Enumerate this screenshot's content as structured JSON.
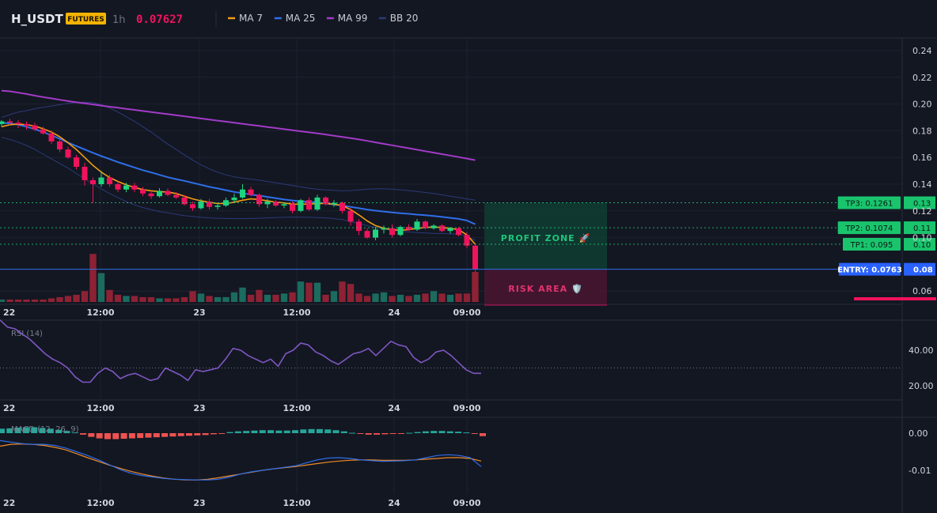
{
  "header": {
    "symbol": "H_USDT",
    "badge": "FUTURES",
    "timeframe": "1h",
    "price": "0.07627",
    "legend": [
      {
        "label": "MA 7",
        "color": "#f39c12"
      },
      {
        "label": "MA 25",
        "color": "#2f6fe8"
      },
      {
        "label": "MA 99",
        "color": "#a23bc7"
      },
      {
        "label": "BB 20",
        "color": "#2b3a78"
      }
    ]
  },
  "colors": {
    "background": "#131722",
    "up": "#1fd47f",
    "down": "#f0135c",
    "vol_up": "#1b6b5f",
    "vol_down": "#8d2234",
    "grid": "#1e2230",
    "profit_zone": "#0f3d32",
    "risk_zone": "#4a1530"
  },
  "price_axis": {
    "ticks": [
      "0.24",
      "0.22",
      "0.20",
      "0.18",
      "0.16",
      "0.14",
      "0.12",
      "0.10",
      "0.06"
    ],
    "range": [
      0.05,
      0.25
    ]
  },
  "time_axis": {
    "labels": [
      "22",
      "12:00",
      "23",
      "12:00",
      "24",
      "09:00"
    ]
  },
  "levels": {
    "tp3": {
      "tag": "TP3: 0.1261",
      "axis": "0.13",
      "value": 0.1261
    },
    "tp2": {
      "tag": "TP2: 0.1074",
      "axis": "0.11",
      "value": 0.1074
    },
    "tp1": {
      "tag": "TP1: 0.095",
      "axis": "0.10",
      "value": 0.095
    },
    "entry": {
      "tag": "ENTRY: 0.0763",
      "axis": "0.08",
      "value": 0.0763
    }
  },
  "zones": {
    "profit": "PROFIT ZONE 🚀",
    "risk": "RISK AREA 🛡️"
  },
  "chart_data": [
    {
      "type": "candlestick",
      "title": "H_USDT 1h",
      "series_names": [
        "MA 7",
        "MA 25",
        "MA 99",
        "BB 20"
      ],
      "ylim": [
        0.05,
        0.25
      ],
      "x_start": 0,
      "candles": [
        [
          0.185,
          0.188,
          0.183,
          0.187
        ],
        [
          0.187,
          0.189,
          0.184,
          0.186
        ],
        [
          0.186,
          0.188,
          0.182,
          0.185
        ],
        [
          0.185,
          0.187,
          0.181,
          0.184
        ],
        [
          0.184,
          0.186,
          0.18,
          0.181
        ],
        [
          0.181,
          0.183,
          0.177,
          0.178
        ],
        [
          0.178,
          0.18,
          0.17,
          0.172
        ],
        [
          0.172,
          0.174,
          0.164,
          0.166
        ],
        [
          0.166,
          0.168,
          0.159,
          0.16
        ],
        [
          0.16,
          0.162,
          0.151,
          0.153
        ],
        [
          0.153,
          0.156,
          0.139,
          0.143
        ],
        [
          0.143,
          0.145,
          0.126,
          0.14
        ],
        [
          0.14,
          0.15,
          0.138,
          0.145
        ],
        [
          0.145,
          0.147,
          0.138,
          0.14
        ],
        [
          0.14,
          0.142,
          0.134,
          0.136
        ],
        [
          0.136,
          0.141,
          0.134,
          0.139
        ],
        [
          0.139,
          0.141,
          0.134,
          0.136
        ],
        [
          0.136,
          0.138,
          0.131,
          0.133
        ],
        [
          0.133,
          0.135,
          0.129,
          0.131
        ],
        [
          0.131,
          0.137,
          0.13,
          0.135
        ],
        [
          0.135,
          0.137,
          0.131,
          0.132
        ],
        [
          0.132,
          0.134,
          0.129,
          0.13
        ],
        [
          0.13,
          0.132,
          0.124,
          0.125
        ],
        [
          0.125,
          0.127,
          0.12,
          0.122
        ],
        [
          0.122,
          0.129,
          0.121,
          0.127
        ],
        [
          0.127,
          0.129,
          0.121,
          0.123
        ],
        [
          0.123,
          0.126,
          0.121,
          0.124
        ],
        [
          0.124,
          0.13,
          0.123,
          0.128
        ],
        [
          0.128,
          0.133,
          0.126,
          0.13
        ],
        [
          0.13,
          0.14,
          0.129,
          0.136
        ],
        [
          0.136,
          0.138,
          0.131,
          0.132
        ],
        [
          0.132,
          0.133,
          0.123,
          0.125
        ],
        [
          0.125,
          0.129,
          0.122,
          0.127
        ],
        [
          0.127,
          0.128,
          0.123,
          0.124
        ],
        [
          0.124,
          0.126,
          0.122,
          0.125
        ],
        [
          0.125,
          0.127,
          0.118,
          0.12
        ],
        [
          0.12,
          0.129,
          0.119,
          0.128
        ],
        [
          0.128,
          0.13,
          0.12,
          0.121
        ],
        [
          0.121,
          0.132,
          0.12,
          0.13
        ],
        [
          0.13,
          0.131,
          0.124,
          0.125
        ],
        [
          0.125,
          0.128,
          0.123,
          0.126
        ],
        [
          0.126,
          0.127,
          0.118,
          0.12
        ],
        [
          0.12,
          0.122,
          0.109,
          0.112
        ],
        [
          0.112,
          0.114,
          0.102,
          0.105
        ],
        [
          0.105,
          0.107,
          0.099,
          0.1
        ],
        [
          0.1,
          0.108,
          0.098,
          0.106
        ],
        [
          0.106,
          0.109,
          0.103,
          0.107
        ],
        [
          0.107,
          0.11,
          0.1,
          0.102
        ],
        [
          0.102,
          0.109,
          0.101,
          0.108
        ],
        [
          0.108,
          0.11,
          0.105,
          0.106
        ],
        [
          0.106,
          0.114,
          0.105,
          0.112
        ],
        [
          0.112,
          0.113,
          0.106,
          0.107
        ],
        [
          0.107,
          0.11,
          0.106,
          0.109
        ],
        [
          0.109,
          0.11,
          0.104,
          0.105
        ],
        [
          0.105,
          0.108,
          0.103,
          0.107
        ],
        [
          0.107,
          0.108,
          0.101,
          0.102
        ],
        [
          0.102,
          0.104,
          0.092,
          0.094
        ],
        [
          0.094,
          0.096,
          0.074,
          0.0763
        ]
      ],
      "ma7": [
        0.183,
        0.1845,
        0.185,
        0.1845,
        0.1835,
        0.1815,
        0.179,
        0.1755,
        0.171,
        0.166,
        0.16,
        0.154,
        0.149,
        0.145,
        0.142,
        0.1395,
        0.1375,
        0.136,
        0.135,
        0.1345,
        0.134,
        0.133,
        0.131,
        0.129,
        0.1275,
        0.1265,
        0.1255,
        0.1255,
        0.1265,
        0.128,
        0.129,
        0.1285,
        0.1275,
        0.1265,
        0.126,
        0.125,
        0.125,
        0.125,
        0.1255,
        0.1255,
        0.125,
        0.124,
        0.121,
        0.117,
        0.1125,
        0.109,
        0.107,
        0.106,
        0.1055,
        0.106,
        0.107,
        0.1075,
        0.108,
        0.1075,
        0.107,
        0.106,
        0.102,
        0.095
      ],
      "ma25": [
        0.186,
        0.1855,
        0.1845,
        0.183,
        0.1812,
        0.179,
        0.1765,
        0.174,
        0.1712,
        0.1685,
        0.166,
        0.1635,
        0.161,
        0.1588,
        0.1565,
        0.1545,
        0.1525,
        0.1505,
        0.1488,
        0.147,
        0.1452,
        0.1438,
        0.1425,
        0.141,
        0.1395,
        0.138,
        0.1368,
        0.1355,
        0.1342,
        0.1332,
        0.1322,
        0.1315,
        0.1305,
        0.1295,
        0.1285,
        0.1278,
        0.1272,
        0.1268,
        0.1262,
        0.1255,
        0.1248,
        0.124,
        0.123,
        0.122,
        0.121,
        0.1202,
        0.1195,
        0.1188,
        0.1182,
        0.1178,
        0.1172,
        0.1168,
        0.1162,
        0.1155,
        0.1148,
        0.114,
        0.1128,
        0.11
      ],
      "ma99": [
        0.21,
        0.2095,
        0.2085,
        0.2075,
        0.2063,
        0.2052,
        0.2042,
        0.2032,
        0.2022,
        0.2013,
        0.2005,
        0.1997,
        0.1988,
        0.198,
        0.1972,
        0.1964,
        0.1956,
        0.1948,
        0.194,
        0.1932,
        0.1924,
        0.1916,
        0.1908,
        0.19,
        0.1892,
        0.1884,
        0.1876,
        0.1868,
        0.186,
        0.1852,
        0.1844,
        0.1836,
        0.1828,
        0.182,
        0.1812,
        0.1804,
        0.1796,
        0.1788,
        0.178,
        0.1772,
        0.1763,
        0.1754,
        0.1745,
        0.1735,
        0.1724,
        0.1713,
        0.1702,
        0.1691,
        0.168,
        0.1669,
        0.1658,
        0.1647,
        0.1636,
        0.1625,
        0.1614,
        0.1603,
        0.1592,
        0.158
      ],
      "bb_upper": [
        0.19,
        0.192,
        0.194,
        0.195,
        0.1965,
        0.1975,
        0.1985,
        0.1995,
        0.2005,
        0.201,
        0.2015,
        0.201,
        0.1995,
        0.197,
        0.194,
        0.1905,
        0.187,
        0.183,
        0.179,
        0.1745,
        0.17,
        0.166,
        0.162,
        0.158,
        0.1545,
        0.1515,
        0.149,
        0.147,
        0.1455,
        0.1445,
        0.1438,
        0.143,
        0.142,
        0.141,
        0.14,
        0.139,
        0.138,
        0.137,
        0.1362,
        0.1357,
        0.1353,
        0.135,
        0.1352,
        0.1357,
        0.1362,
        0.1365,
        0.1365,
        0.1362,
        0.1358,
        0.1352,
        0.1345,
        0.1338,
        0.133,
        0.132,
        0.131,
        0.13,
        0.129,
        0.128
      ],
      "bb_lower": [
        0.175,
        0.1735,
        0.1715,
        0.169,
        0.166,
        0.1625,
        0.159,
        0.1555,
        0.152,
        0.148,
        0.144,
        0.14,
        0.1365,
        0.133,
        0.13,
        0.127,
        0.1245,
        0.1225,
        0.121,
        0.1195,
        0.1185,
        0.1175,
        0.1165,
        0.1158,
        0.1152,
        0.1148,
        0.1145,
        0.1143,
        0.1142,
        0.1142,
        0.1143,
        0.1145,
        0.1148,
        0.115,
        0.1152,
        0.1153,
        0.1153,
        0.1152,
        0.115,
        0.1148,
        0.1142,
        0.1135,
        0.112,
        0.1105,
        0.109,
        0.1075,
        0.1065,
        0.1055,
        0.1048,
        0.1042,
        0.1038,
        0.1035,
        0.1032,
        0.103,
        0.1028,
        0.1025,
        0.101,
        0.098
      ],
      "volume": [
        2,
        2,
        2,
        2,
        2,
        2,
        3,
        4,
        5,
        6,
        9,
        40,
        24,
        10,
        6,
        5,
        5,
        4,
        4,
        3,
        3,
        3,
        4,
        9,
        7,
        5,
        4,
        4,
        8,
        12,
        6,
        10,
        6,
        6,
        7,
        8,
        17,
        16,
        16,
        6,
        9,
        17,
        15,
        7,
        5,
        7,
        8,
        5,
        6,
        5,
        6,
        7,
        9,
        7,
        6,
        7,
        7,
        25
      ]
    },
    {
      "type": "line",
      "title": "RSI (14)",
      "series_names": [
        "RSI"
      ],
      "yticks": [
        "40.00",
        "20.00"
      ],
      "ylim": [
        10,
        60
      ],
      "reference_line": 30,
      "values": [
        57,
        53,
        52,
        49,
        46,
        42,
        38,
        35,
        33,
        30,
        25,
        22,
        22,
        27,
        30,
        28,
        24,
        26,
        27,
        25,
        23,
        24,
        30,
        28,
        26,
        23,
        29,
        28,
        29,
        30,
        35,
        41,
        40,
        37,
        35,
        33,
        35,
        31,
        38,
        40,
        44,
        43,
        39,
        37,
        34,
        32,
        35,
        38,
        39,
        41,
        37,
        41,
        45,
        43,
        42,
        36,
        33,
        35,
        39,
        40,
        37,
        33,
        29,
        27,
        27
      ]
    },
    {
      "type": "bar",
      "title": "MACD (12, 26, 9)",
      "series_names": [
        "Histogram",
        "MACD",
        "Signal"
      ],
      "yticks": [
        "0.00",
        "-0.01"
      ],
      "ylim": [
        -0.0165,
        0.0045
      ],
      "histogram": [
        0.0012,
        0.0013,
        0.0015,
        0.0016,
        0.0016,
        0.0014,
        0.0012,
        0.0009,
        0.0006,
        0.0002,
        -0.0004,
        -0.001,
        -0.0014,
        -0.0016,
        -0.0016,
        -0.0015,
        -0.0014,
        -0.0013,
        -0.0012,
        -0.0011,
        -0.001,
        -0.0009,
        -0.0008,
        -0.0007,
        -0.0006,
        -0.0005,
        -0.0003,
        -0.0001,
        0.0003,
        0.0005,
        0.0006,
        0.0007,
        0.0008,
        0.0008,
        0.0007,
        0.0007,
        0.0008,
        0.001,
        0.0011,
        0.0011,
        0.001,
        0.0008,
        0.0005,
        0.0001,
        -0.0002,
        -0.0004,
        -0.0004,
        -0.0003,
        -0.0002,
        -0.0001,
        0.0001,
        0.0003,
        0.0005,
        0.0006,
        0.0006,
        0.0005,
        0.0004,
        0.0002,
        -0.0002,
        -0.0008
      ],
      "macd": [
        -0.002,
        -0.0024,
        -0.0028,
        -0.003,
        -0.003,
        -0.0033,
        -0.004,
        -0.005,
        -0.006,
        -0.0072,
        -0.0085,
        -0.0098,
        -0.0108,
        -0.0114,
        -0.0118,
        -0.0122,
        -0.0124,
        -0.0125,
        -0.0126,
        -0.0126,
        -0.0124,
        -0.0118,
        -0.011,
        -0.0104,
        -0.01,
        -0.0096,
        -0.0092,
        -0.0088,
        -0.008,
        -0.0072,
        -0.0067,
        -0.0066,
        -0.0068,
        -0.0072,
        -0.0074,
        -0.0076,
        -0.0075,
        -0.0074,
        -0.0072,
        -0.0066,
        -0.006,
        -0.0058,
        -0.006,
        -0.0066,
        -0.009
      ],
      "signal": [
        -0.0035,
        -0.003,
        -0.0029,
        -0.003,
        -0.0033,
        -0.0038,
        -0.0045,
        -0.0055,
        -0.0066,
        -0.0076,
        -0.0086,
        -0.0095,
        -0.0103,
        -0.011,
        -0.0116,
        -0.0121,
        -0.0124,
        -0.0126,
        -0.0126,
        -0.0124,
        -0.012,
        -0.0115,
        -0.011,
        -0.0105,
        -0.01,
        -0.0096,
        -0.0093,
        -0.009,
        -0.0086,
        -0.0082,
        -0.0078,
        -0.0075,
        -0.0073,
        -0.0072,
        -0.0072,
        -0.0073,
        -0.0073,
        -0.0073,
        -0.0072,
        -0.007,
        -0.0068,
        -0.0066,
        -0.0066,
        -0.0068,
        -0.0075
      ]
    }
  ]
}
